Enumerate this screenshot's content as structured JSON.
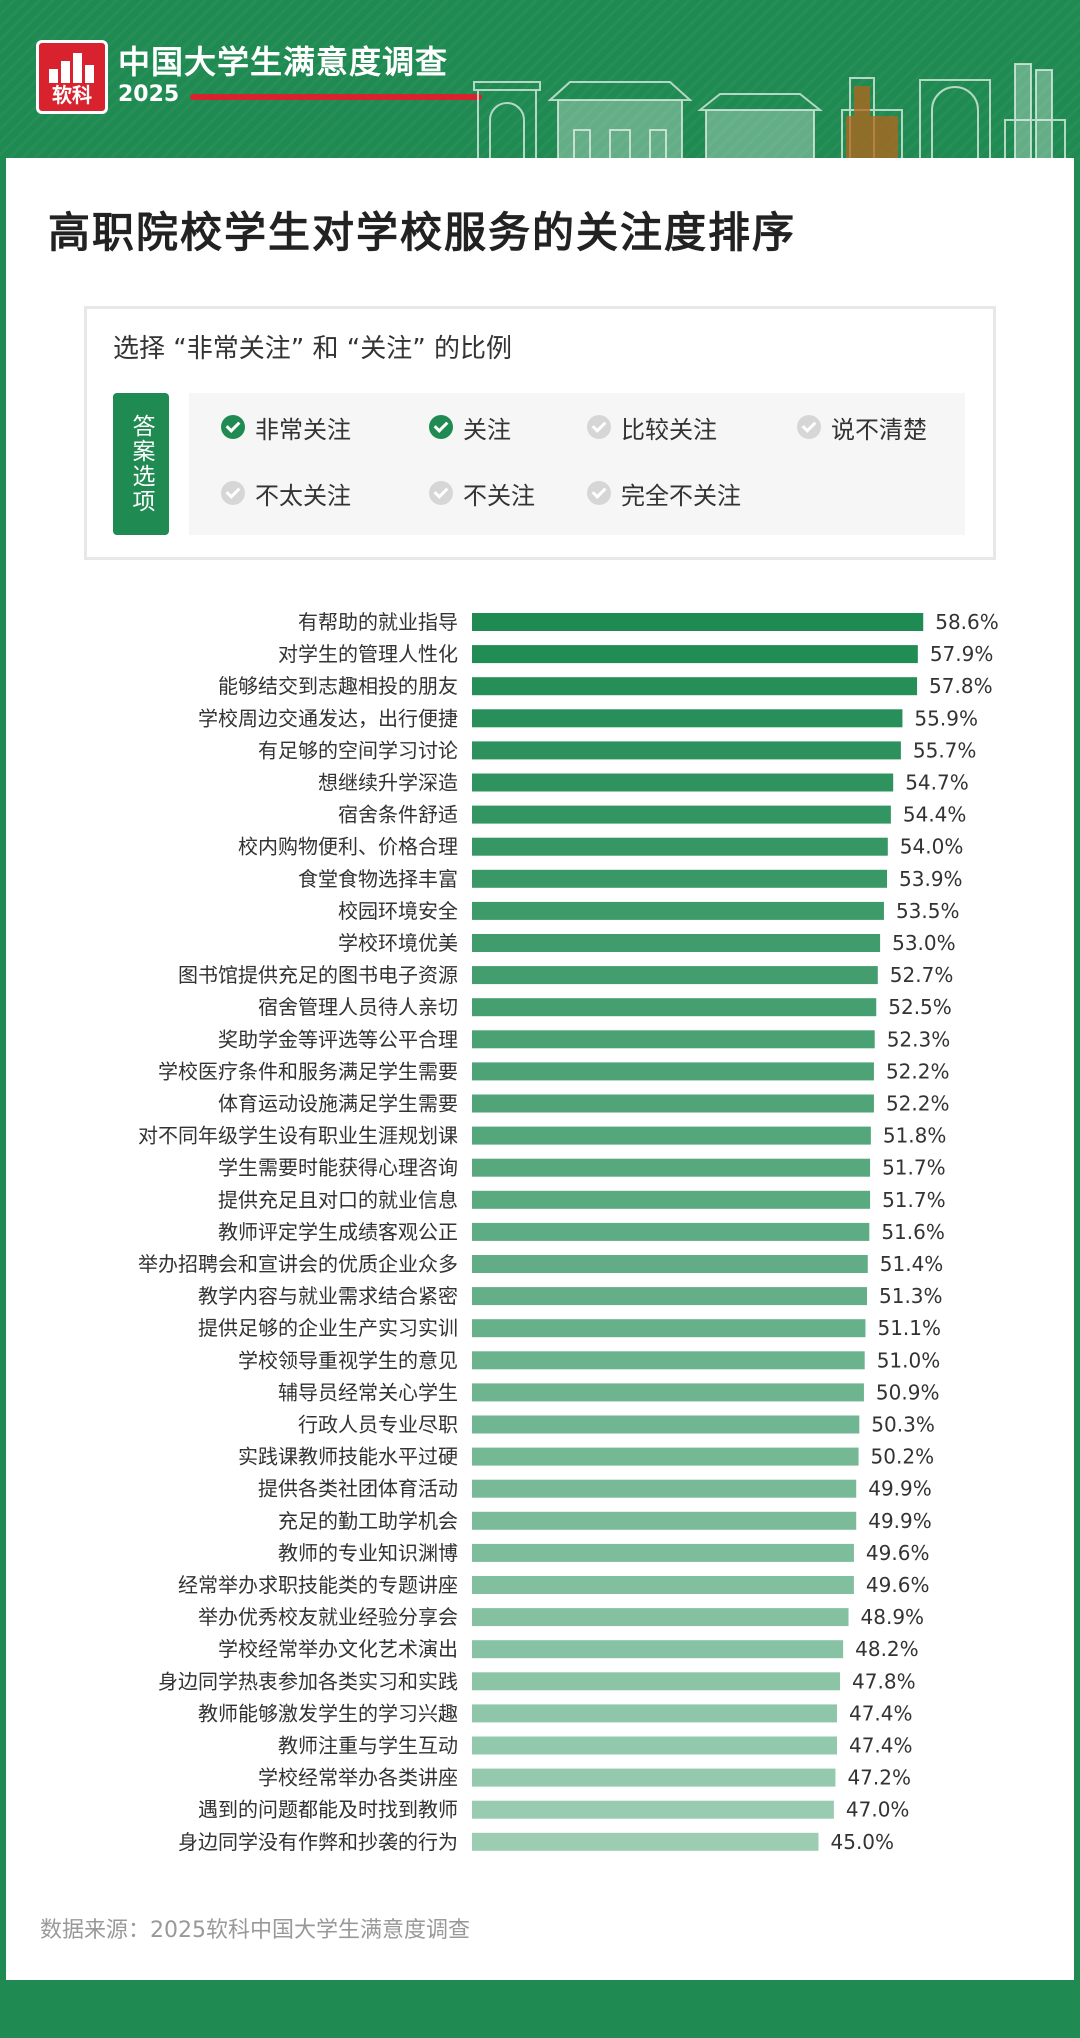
{
  "header": {
    "logo_text": "软科",
    "title": "中国大学生满意度调查",
    "year": "2025",
    "colors": {
      "brand_green": "#1f8a52",
      "brand_red": "#d8232f"
    }
  },
  "page_title": "高职院校学生对学校服务的关注度排序",
  "legend": {
    "caption": "选择 “非常关注” 和 “关注” 的比例",
    "tag": "答案选项",
    "options": [
      {
        "label": "非常关注",
        "selected": true
      },
      {
        "label": "关注",
        "selected": true
      },
      {
        "label": "比较关注",
        "selected": false
      },
      {
        "label": "说不清楚",
        "selected": false
      },
      {
        "label": "不太关注",
        "selected": false
      },
      {
        "label": "不关注",
        "selected": false
      },
      {
        "label": "完全不关注",
        "selected": false
      }
    ]
  },
  "chart_data": {
    "type": "bar",
    "orientation": "horizontal",
    "value_unit": "%",
    "bar_color_start": "#1f8a52",
    "bar_color_end": "#9ccdb3",
    "categories": [
      "有帮助的就业指导",
      "对学生的管理人性化",
      "能够结交到志趣相投的朋友",
      "学校周边交通发达，出行便捷",
      "有足够的空间学习讨论",
      "想继续升学深造",
      "宿舍条件舒适",
      "校内购物便利、价格合理",
      "食堂食物选择丰富",
      "校园环境安全",
      "学校环境优美",
      "图书馆提供充足的图书电子资源",
      "宿舍管理人员待人亲切",
      "奖助学金等评选等公平合理",
      "学校医疗条件和服务满足学生需要",
      "体育运动设施满足学生需要",
      "对不同年级学生设有职业生涯规划课",
      "学生需要时能获得心理咨询",
      "提供充足且对口的就业信息",
      "教师评定学生成绩客观公正",
      "举办招聘会和宣讲会的优质企业众多",
      "教学内容与就业需求结合紧密",
      "提供足够的企业生产实习实训",
      "学校领导重视学生的意见",
      "辅导员经常关心学生",
      "行政人员专业尽职",
      "实践课教师技能水平过硬",
      "提供各类社团体育活动",
      "充足的勤工助学机会",
      "教师的专业知识渊博",
      "经常举办求职技能类的专题讲座",
      "举办优秀校友就业经验分享会",
      "学校经常举办文化艺术演出",
      "身边同学热衷参加各类实习和实践",
      "教师能够激发学生的学习兴趣",
      "教师注重与学生互动",
      "学校经常举办各类讲座",
      "遇到的问题都能及时找到教师",
      "身边同学没有作弊和抄袭的行为"
    ],
    "values": [
      58.6,
      57.9,
      57.8,
      55.9,
      55.7,
      54.7,
      54.4,
      54.0,
      53.9,
      53.5,
      53.0,
      52.7,
      52.5,
      52.3,
      52.2,
      52.2,
      51.8,
      51.7,
      51.7,
      51.6,
      51.4,
      51.3,
      51.1,
      51.0,
      50.9,
      50.3,
      50.2,
      49.9,
      49.9,
      49.6,
      49.6,
      48.9,
      48.2,
      47.8,
      47.4,
      47.4,
      47.2,
      47.0,
      45.0
    ],
    "value_labels": [
      "58.6%",
      "57.9%",
      "57.8%",
      "55.9%",
      "55.7%",
      "54.7%",
      "54.4%",
      "54.0%",
      "53.9%",
      "53.5%",
      "53.0%",
      "52.7%",
      "52.5%",
      "52.3%",
      "52.2%",
      "52.2%",
      "51.8%",
      "51.7%",
      "51.7%",
      "51.6%",
      "51.4%",
      "51.3%",
      "51.1%",
      "51.0%",
      "50.9%",
      "50.3%",
      "50.2%",
      "49.9%",
      "49.9%",
      "49.6%",
      "49.6%",
      "48.9%",
      "48.2%",
      "47.8%",
      "47.4%",
      "47.4%",
      "47.2%",
      "47.0%",
      "45.0%"
    ],
    "grid": false,
    "legend": "none"
  },
  "footer": {
    "source": "数据来源：2025软科中国大学生满意度调查"
  }
}
